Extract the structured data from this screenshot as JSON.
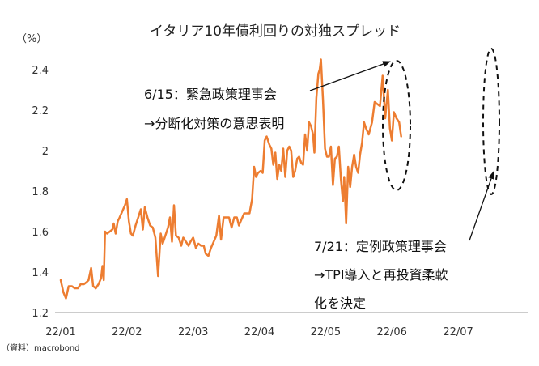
{
  "chart_data": {
    "type": "line",
    "title": "イタリア10年債利回りの対独スプレッド",
    "unit_label": "（%）",
    "source": "（資料）macrobond",
    "ylim": [
      1.2,
      2.5
    ],
    "yticks": [
      "1.2",
      "1.4",
      "1.6",
      "1.8",
      "2",
      "2.2",
      "2.4"
    ],
    "xlim": [
      0,
      7.05
    ],
    "xticks": [
      "22/01",
      "22/02",
      "22/03",
      "22/04",
      "22/05",
      "22/06",
      "22/07"
    ],
    "grid": false,
    "color": "#ED7D31",
    "series": [
      {
        "values": [
          [
            0.0,
            1.36
          ],
          [
            0.04,
            1.3
          ],
          [
            0.08,
            1.27
          ],
          [
            0.12,
            1.33
          ],
          [
            0.17,
            1.33
          ],
          [
            0.21,
            1.32
          ],
          [
            0.26,
            1.32
          ],
          [
            0.3,
            1.34
          ],
          [
            0.35,
            1.34
          ],
          [
            0.39,
            1.35
          ],
          [
            0.42,
            1.36
          ],
          [
            0.46,
            1.42
          ],
          [
            0.49,
            1.33
          ],
          [
            0.53,
            1.32
          ],
          [
            0.57,
            1.34
          ],
          [
            0.61,
            1.37
          ],
          [
            0.63,
            1.43
          ],
          [
            0.65,
            1.36
          ],
          [
            0.67,
            1.6
          ],
          [
            0.7,
            1.59
          ],
          [
            0.74,
            1.6
          ],
          [
            0.78,
            1.61
          ],
          [
            0.8,
            1.64
          ],
          [
            0.83,
            1.59
          ],
          [
            0.86,
            1.65
          ],
          [
            0.89,
            1.67
          ],
          [
            0.93,
            1.7
          ],
          [
            0.97,
            1.73
          ],
          [
            1.0,
            1.76
          ],
          [
            1.03,
            1.65
          ],
          [
            1.06,
            1.59
          ],
          [
            1.09,
            1.58
          ],
          [
            1.13,
            1.63
          ],
          [
            1.17,
            1.67
          ],
          [
            1.21,
            1.71
          ],
          [
            1.24,
            1.61
          ],
          [
            1.27,
            1.72
          ],
          [
            1.31,
            1.67
          ],
          [
            1.35,
            1.63
          ],
          [
            1.39,
            1.62
          ],
          [
            1.43,
            1.57
          ],
          [
            1.47,
            1.38
          ],
          [
            1.51,
            1.59
          ],
          [
            1.54,
            1.54
          ],
          [
            1.58,
            1.58
          ],
          [
            1.62,
            1.62
          ],
          [
            1.65,
            1.67
          ],
          [
            1.68,
            1.55
          ],
          [
            1.71,
            1.73
          ],
          [
            1.74,
            1.58
          ],
          [
            1.78,
            1.57
          ],
          [
            1.82,
            1.53
          ],
          [
            1.85,
            1.57
          ],
          [
            1.89,
            1.55
          ],
          [
            1.93,
            1.53
          ],
          [
            1.96,
            1.55
          ],
          [
            2.0,
            1.57
          ],
          [
            2.04,
            1.52
          ],
          [
            2.08,
            1.54
          ],
          [
            2.12,
            1.53
          ],
          [
            2.16,
            1.53
          ],
          [
            2.19,
            1.49
          ],
          [
            2.23,
            1.48
          ],
          [
            2.27,
            1.52
          ],
          [
            2.31,
            1.55
          ],
          [
            2.35,
            1.58
          ],
          [
            2.39,
            1.68
          ],
          [
            2.42,
            1.56
          ],
          [
            2.46,
            1.67
          ],
          [
            2.5,
            1.67
          ],
          [
            2.54,
            1.67
          ],
          [
            2.58,
            1.62
          ],
          [
            2.62,
            1.67
          ],
          [
            2.66,
            1.67
          ],
          [
            2.69,
            1.63
          ],
          [
            2.73,
            1.66
          ],
          [
            2.77,
            1.69
          ],
          [
            2.81,
            1.69
          ],
          [
            2.85,
            1.69
          ],
          [
            2.89,
            1.76
          ],
          [
            2.92,
            1.92
          ],
          [
            2.95,
            1.87
          ],
          [
            2.98,
            1.89
          ],
          [
            3.02,
            1.9
          ],
          [
            3.05,
            1.89
          ],
          [
            3.08,
            2.05
          ],
          [
            3.11,
            2.07
          ],
          [
            3.15,
            2.03
          ],
          [
            3.18,
            2.01
          ],
          [
            3.21,
            1.93
          ],
          [
            3.24,
            1.99
          ],
          [
            3.27,
            1.86
          ],
          [
            3.3,
            1.93
          ],
          [
            3.33,
            1.9
          ],
          [
            3.36,
            2.01
          ],
          [
            3.39,
            1.87
          ],
          [
            3.42,
            2.0
          ],
          [
            3.45,
            2.02
          ],
          [
            3.48,
            2.0
          ],
          [
            3.51,
            1.87
          ],
          [
            3.54,
            1.9
          ],
          [
            3.57,
            1.96
          ],
          [
            3.6,
            1.97
          ],
          [
            3.63,
            1.94
          ],
          [
            3.66,
            1.93
          ],
          [
            3.69,
            2.08
          ],
          [
            3.72,
            2.0
          ],
          [
            3.75,
            2.14
          ],
          [
            3.78,
            2.12
          ],
          [
            3.81,
            2.08
          ],
          [
            3.83,
            1.99
          ],
          [
            3.86,
            2.26
          ],
          [
            3.89,
            2.38
          ],
          [
            3.91,
            2.4
          ],
          [
            3.93,
            2.45
          ],
          [
            3.96,
            2.25
          ],
          [
            3.99,
            2.01
          ],
          [
            4.02,
            1.97
          ],
          [
            4.05,
            1.97
          ],
          [
            4.08,
            2.02
          ],
          [
            4.11,
            1.83
          ],
          [
            4.14,
            1.96
          ],
          [
            4.17,
            1.97
          ],
          [
            4.2,
            2.02
          ],
          [
            4.23,
            1.86
          ],
          [
            4.26,
            1.75
          ],
          [
            4.28,
            1.87
          ],
          [
            4.31,
            1.64
          ],
          [
            4.34,
            1.92
          ],
          [
            4.37,
            1.82
          ],
          [
            4.4,
            1.92
          ],
          [
            4.43,
            1.98
          ],
          [
            4.46,
            1.92
          ],
          [
            4.49,
            1.89
          ],
          [
            4.52,
            1.98
          ],
          [
            4.55,
            2.04
          ],
          [
            4.58,
            2.14
          ],
          [
            4.61,
            2.11
          ],
          [
            4.65,
            2.08
          ],
          [
            4.7,
            2.14
          ],
          [
            4.74,
            2.24
          ],
          [
            4.78,
            2.23
          ],
          [
            4.82,
            2.22
          ],
          [
            4.86,
            2.37
          ],
          [
            4.9,
            2.16
          ],
          [
            4.94,
            2.3
          ],
          [
            4.97,
            2.11
          ],
          [
            5.0,
            2.05
          ],
          [
            5.03,
            2.19
          ],
          [
            5.07,
            2.16
          ],
          [
            5.11,
            2.14
          ],
          [
            5.14,
            2.07
          ]
        ]
      }
    ],
    "annotations": [
      {
        "lines": [
          "6/15：緊急政策理事会",
          "→分断化対策の意思表明"
        ]
      },
      {
        "lines": [
          "7/21：定例政策理事会",
          "→TPI導入と再投資柔軟",
          "化を決定"
        ]
      }
    ]
  }
}
